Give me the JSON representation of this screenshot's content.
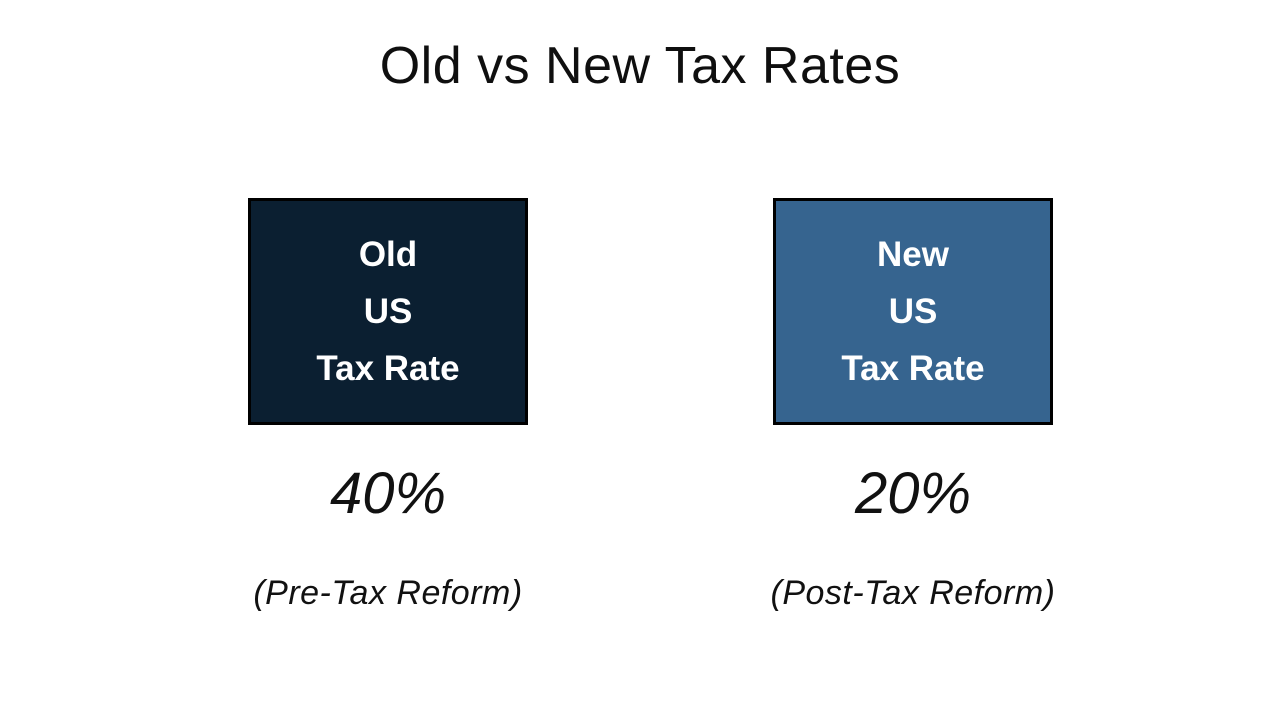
{
  "slide": {
    "title": "Old vs New Tax Rates",
    "background": "#FFFFFF",
    "title_color": "#0F0F0F"
  },
  "comparison": {
    "old": {
      "box_lines": [
        "Old",
        "US",
        "Tax Rate"
      ],
      "box_fill": "#0B1F31",
      "box_border": "#000000",
      "box_text_color": "#FFFFFF",
      "rate": "40%",
      "caption": "(Pre-Tax Reform)"
    },
    "new": {
      "box_lines": [
        "New",
        "US",
        "Tax Rate"
      ],
      "box_fill": "#36648F",
      "box_border": "#000000",
      "box_text_color": "#FFFFFF",
      "rate": "20%",
      "caption": "(Post-Tax Reform)"
    }
  },
  "chart_data": {
    "type": "table",
    "title": "Old vs New Tax Rates",
    "categories": [
      "Old US Tax Rate",
      "New US Tax Rate"
    ],
    "values": [
      40,
      20
    ],
    "unit": "%",
    "annotations": [
      "(Pre-Tax Reform)",
      "(Post-Tax Reform)"
    ]
  }
}
